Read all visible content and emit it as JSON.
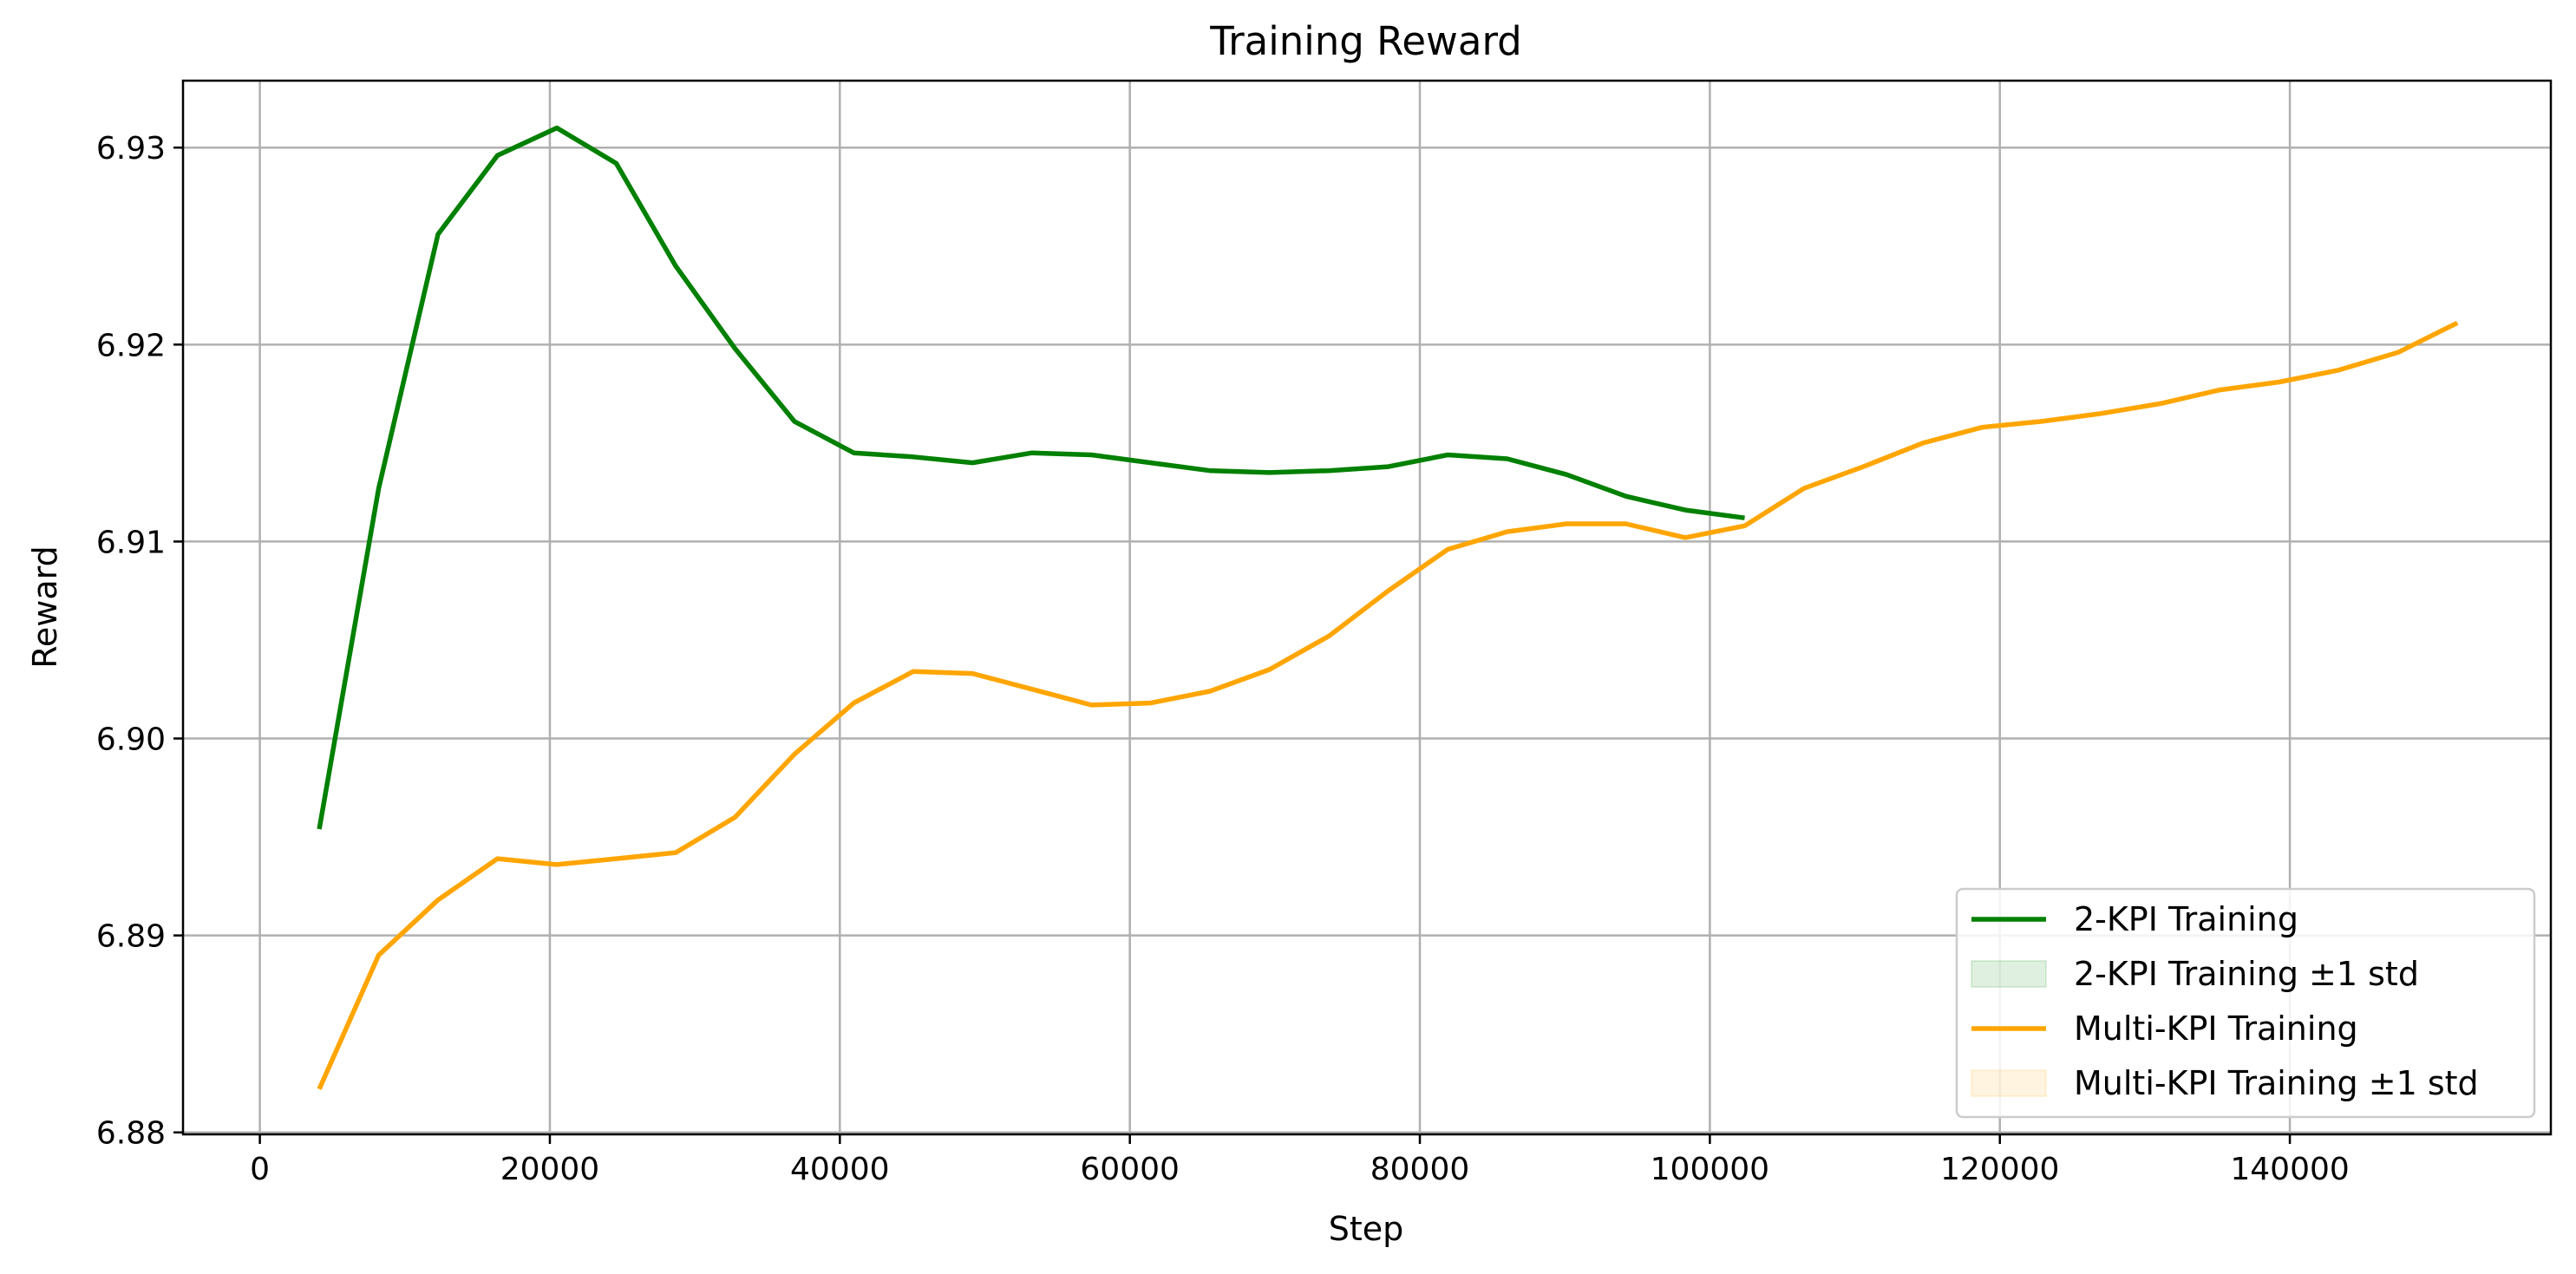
{
  "chart_data": {
    "type": "line",
    "title": "Training Reward",
    "xlabel": "Step",
    "ylabel": "Reward",
    "xlim": [
      -5300,
      158000
    ],
    "ylim": [
      6.8799,
      6.9334
    ],
    "xticks": [
      0,
      20000,
      40000,
      60000,
      80000,
      100000,
      120000,
      140000
    ],
    "xtick_labels": [
      "0",
      "20000",
      "40000",
      "60000",
      "80000",
      "100000",
      "120000",
      "140000"
    ],
    "yticks": [
      6.88,
      6.89,
      6.9,
      6.91,
      6.92,
      6.93
    ],
    "ytick_labels": [
      "6.88",
      "6.89",
      "6.90",
      "6.91",
      "6.92",
      "6.93"
    ],
    "grid": true,
    "legend_position": "lower-right",
    "series": [
      {
        "name": "2-KPI Training",
        "color": "#008000",
        "x": [
          4096,
          8192,
          12288,
          16384,
          20480,
          24576,
          28672,
          32768,
          36864,
          40960,
          45056,
          49152,
          53248,
          57344,
          61440,
          65536,
          69632,
          73728,
          77824,
          81920,
          86016,
          90112,
          94208,
          98304,
          102400
        ],
        "values": [
          6.8954,
          6.9127,
          6.9256,
          6.9296,
          6.931,
          6.9292,
          6.924,
          6.9198,
          6.9161,
          6.9145,
          6.9143,
          6.914,
          6.9145,
          6.9144,
          6.914,
          6.9136,
          6.9135,
          6.9136,
          6.9138,
          6.9144,
          6.9142,
          6.9134,
          6.9123,
          6.9116,
          6.9112
        ]
      },
      {
        "name": "Multi-KPI Training",
        "color": "#FFA500",
        "x": [
          4096,
          8192,
          12288,
          16384,
          20480,
          24576,
          28672,
          32768,
          36864,
          40960,
          45056,
          49152,
          53248,
          57344,
          61440,
          65536,
          69632,
          73728,
          77824,
          81920,
          86016,
          90112,
          94208,
          98304,
          102400,
          106496,
          110592,
          114688,
          118784,
          122880,
          126976,
          131072,
          135168,
          139264,
          143360,
          147456,
          151552
        ],
        "values": [
          6.8822,
          6.889,
          6.8918,
          6.8939,
          6.8936,
          6.8939,
          6.8942,
          6.896,
          6.8992,
          6.9018,
          6.9034,
          6.9033,
          6.9025,
          6.9017,
          6.9018,
          6.9024,
          6.9035,
          6.9052,
          6.9075,
          6.9096,
          6.9105,
          6.9109,
          6.9109,
          6.9102,
          6.9108,
          6.9127,
          6.9138,
          6.915,
          6.9158,
          6.9161,
          6.9165,
          6.917,
          6.9177,
          6.9181,
          6.9187,
          6.9196,
          6.9211
        ]
      }
    ],
    "legend": [
      {
        "label": "2-KPI Training",
        "kind": "line",
        "color": "#008000"
      },
      {
        "label": "2-KPI Training ±1 std",
        "kind": "patch",
        "color": "#008000"
      },
      {
        "label": "Multi-KPI Training",
        "kind": "line",
        "color": "#FFA500"
      },
      {
        "label": "Multi-KPI Training ±1 std",
        "kind": "patch",
        "color": "#FFA500"
      }
    ]
  }
}
